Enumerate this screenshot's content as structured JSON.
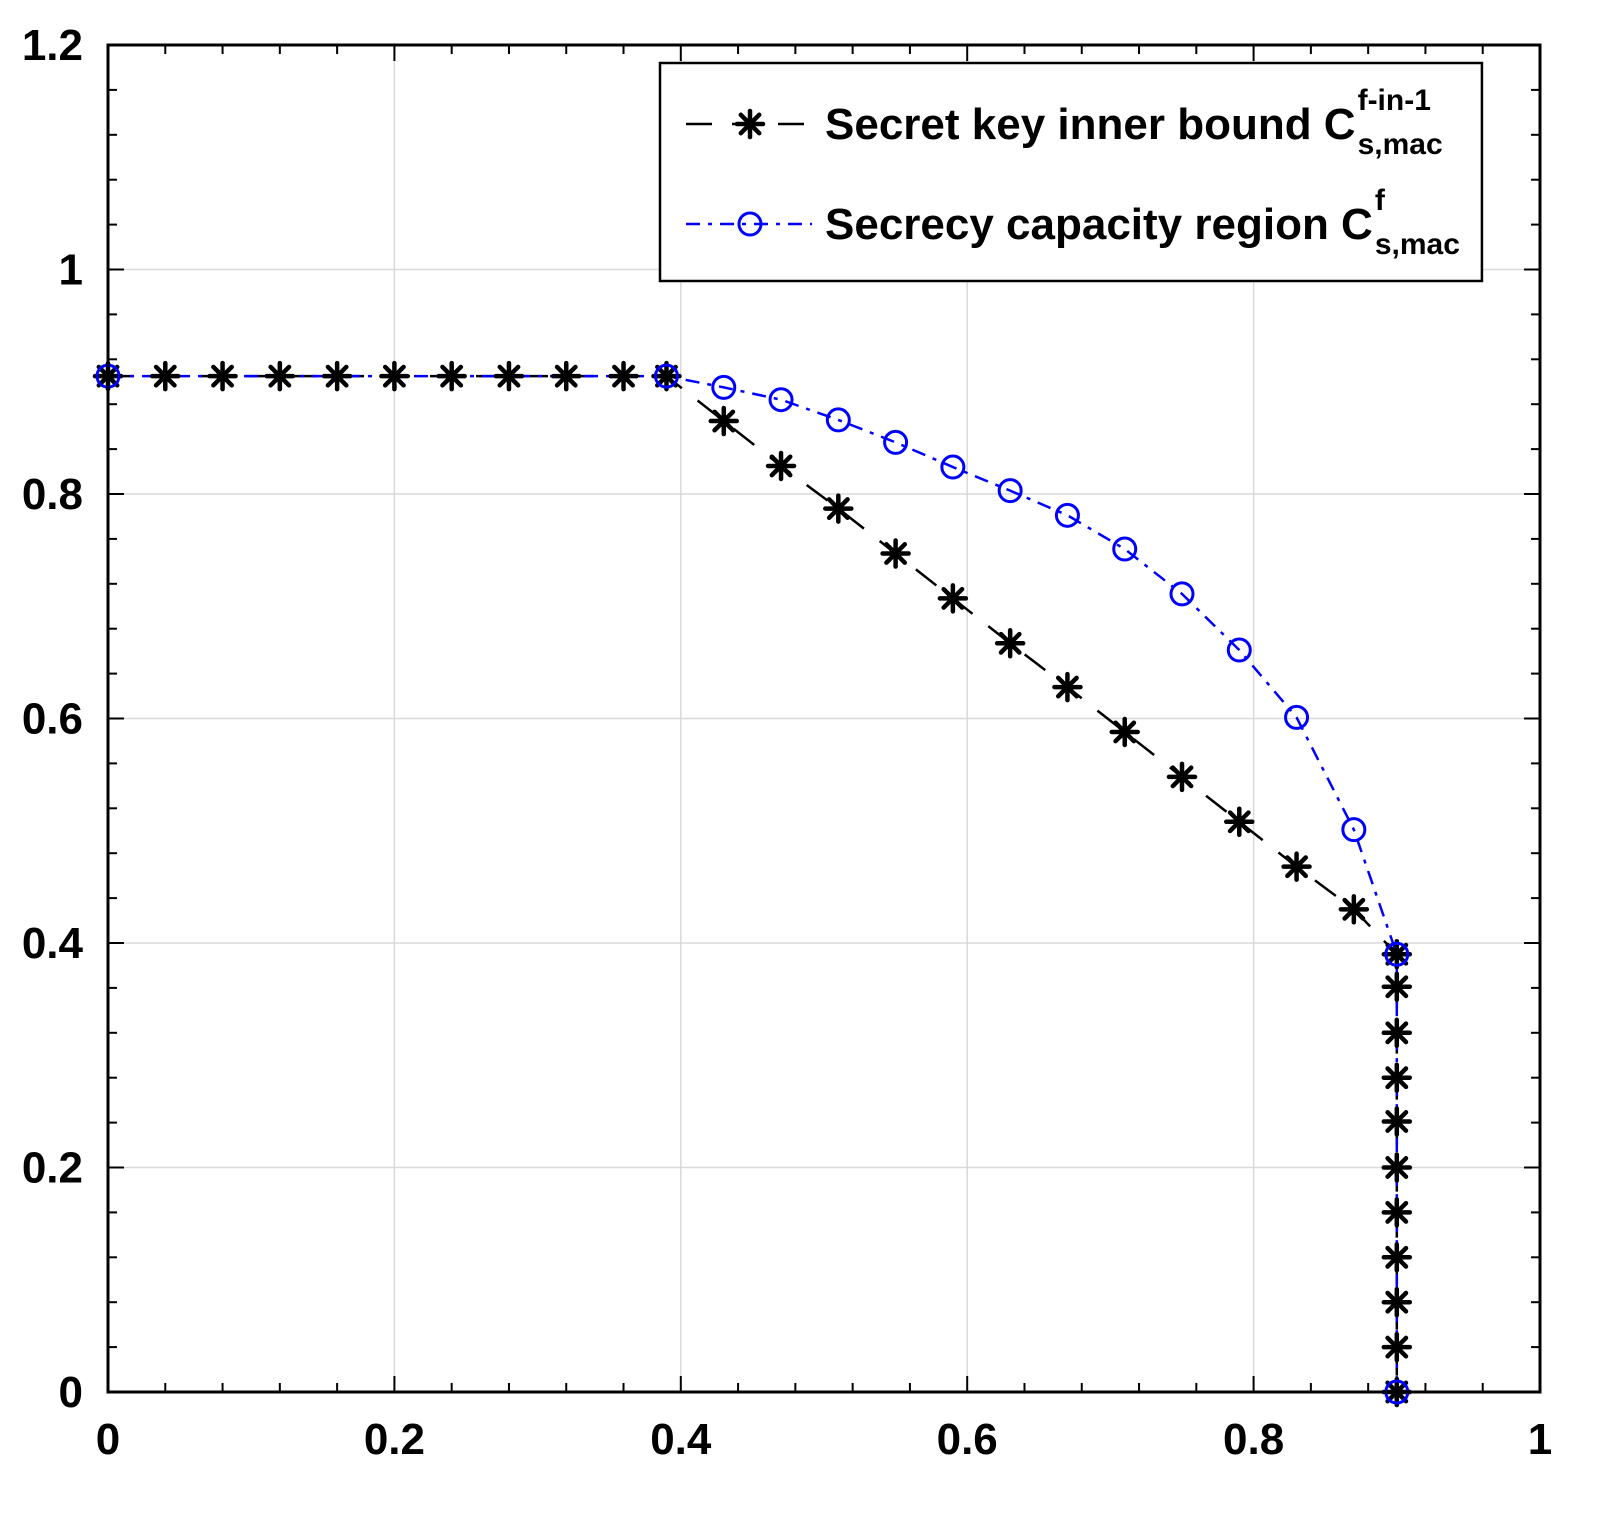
{
  "chart_data": {
    "type": "line",
    "xlim": [
      0,
      1
    ],
    "ylim": [
      0,
      1.2
    ],
    "xticks": [
      "0",
      "0.2",
      "0.4",
      "0.6",
      "0.8",
      "1"
    ],
    "yticks": [
      "0",
      "0.2",
      "0.4",
      "0.6",
      "0.8",
      "1",
      "1.2"
    ],
    "grid": true,
    "legend_position": "top-right",
    "series": [
      {
        "name": "Secret key inner bound C",
        "name_superscript": "f-in-1",
        "name_subscript": "s,mac",
        "color": "#000000",
        "line_style": "dashed",
        "marker": "asterisk",
        "x": [
          0,
          0.04,
          0.08,
          0.12,
          0.16,
          0.2,
          0.24,
          0.28,
          0.32,
          0.36,
          0.39,
          0.43,
          0.47,
          0.51,
          0.55,
          0.59,
          0.63,
          0.67,
          0.71,
          0.75,
          0.79,
          0.83,
          0.87,
          0.9,
          0.9,
          0.9,
          0.9,
          0.9,
          0.9,
          0.9,
          0.9,
          0.9,
          0.9,
          0.9
        ],
        "y": [
          0.905,
          0.905,
          0.905,
          0.905,
          0.905,
          0.905,
          0.905,
          0.905,
          0.905,
          0.905,
          0.905,
          0.865,
          0.825,
          0.787,
          0.747,
          0.707,
          0.667,
          0.628,
          0.588,
          0.548,
          0.508,
          0.468,
          0.43,
          0.39,
          0.361,
          0.32,
          0.28,
          0.241,
          0.2,
          0.16,
          0.12,
          0.08,
          0.04,
          0
        ]
      },
      {
        "name": "Secrecy capacity region C",
        "name_superscript": "f",
        "name_subscript": "s,mac",
        "color": "#0000ff",
        "line_style": "dash-dot",
        "marker": "circle",
        "x": [
          0,
          0.39,
          0.43,
          0.47,
          0.51,
          0.55,
          0.59,
          0.63,
          0.67,
          0.71,
          0.75,
          0.79,
          0.83,
          0.87,
          0.9,
          0.9
        ],
        "y": [
          0.905,
          0.905,
          0.895,
          0.884,
          0.866,
          0.846,
          0.824,
          0.803,
          0.781,
          0.751,
          0.711,
          0.661,
          0.601,
          0.501,
          0.39,
          0
        ]
      }
    ]
  }
}
